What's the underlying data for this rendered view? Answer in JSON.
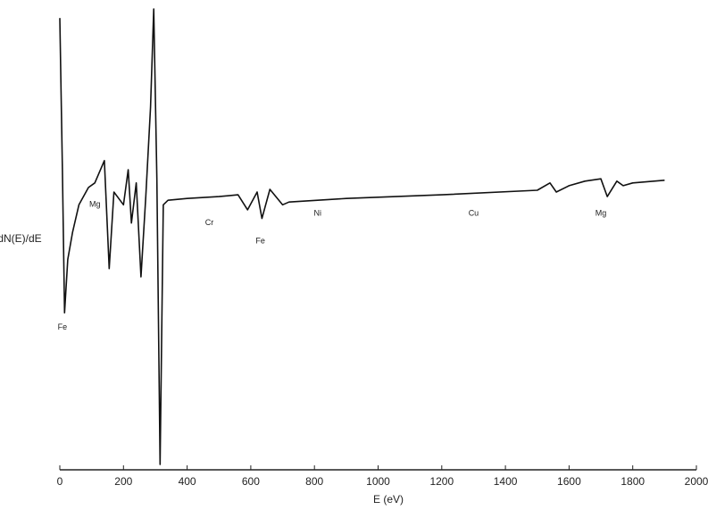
{
  "chart_data": {
    "type": "line",
    "y_label": "dN(E)/dE",
    "x_label": "E (eV)",
    "color": "#111111",
    "x": [
      0,
      8,
      15,
      25,
      40,
      60,
      90,
      110,
      140,
      155,
      170,
      200,
      215,
      225,
      240,
      255,
      270,
      285,
      295,
      305,
      315,
      325,
      340,
      400,
      500,
      560,
      590,
      620,
      635,
      660,
      700,
      720,
      900,
      1200,
      1500,
      1540,
      1560,
      1600,
      1650,
      1700,
      1720,
      1750,
      1770,
      1800,
      1900
    ],
    "values": [
      38,
      4.7,
      -26.7,
      -15,
      -9,
      -3,
      0.8,
      1.8,
      6.7,
      -17,
      -0.2,
      -3,
      4.7,
      -7,
      1.8,
      -18.8,
      -1.2,
      18.4,
      40,
      2.7,
      -60,
      -3,
      -2,
      -1.6,
      -1.2,
      -0.8,
      -4.1,
      -0.2,
      -6,
      0.4,
      -3,
      -2.4,
      -1.6,
      -0.8,
      0.2,
      1.8,
      -0.2,
      1.2,
      2.2,
      2.7,
      -1.2,
      2.2,
      1.2,
      1.8,
      2.4
    ],
    "xlim": [
      0,
      2000
    ],
    "ylim": [
      -60,
      40
    ],
    "xticks": [
      0,
      200,
      400,
      600,
      800,
      1000,
      1200,
      1400,
      1600,
      1800,
      2000
    ],
    "annotations": [
      {
        "text": "Fe",
        "x": 8,
        "y": -28
      },
      {
        "text": "Mg",
        "x": 110,
        "y": -1
      },
      {
        "text": "Cr",
        "x": 470,
        "y": -5
      },
      {
        "text": "Fe",
        "x": 630,
        "y": -9
      },
      {
        "text": "Ni",
        "x": 810,
        "y": -3
      },
      {
        "text": "Cu",
        "x": 1300,
        "y": -3
      },
      {
        "text": "Mg",
        "x": 1700,
        "y": -3
      }
    ]
  }
}
